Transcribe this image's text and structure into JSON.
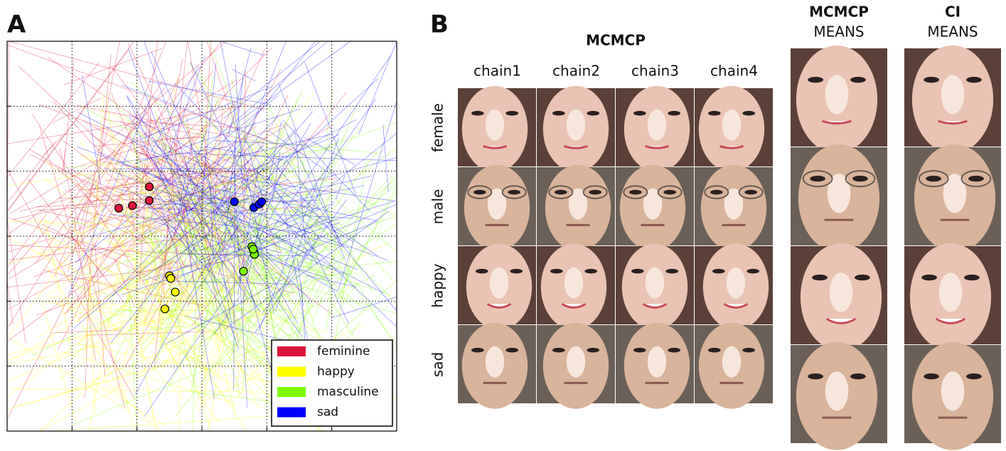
{
  "panel_labels": [
    "A",
    "B"
  ],
  "chart_data": {
    "type": "scatter",
    "xlim": [
      0,
      6
    ],
    "ylim": [
      0,
      6
    ],
    "xticks": [
      1,
      2,
      3,
      4,
      5
    ],
    "yticks": [
      1,
      2,
      3,
      4,
      5
    ],
    "grid": true,
    "legend_position": "lower right",
    "series": [
      {
        "name": "feminine",
        "color": "#dc143c",
        "x": [
          1.72,
          1.93,
          2.19,
          2.19
        ],
        "values": [
          3.43,
          3.47,
          3.76,
          3.55
        ]
      },
      {
        "name": "happy",
        "color": "#ffff00",
        "x": [
          2.5,
          2.52,
          2.59,
          2.43
        ],
        "values": [
          2.39,
          2.35,
          2.14,
          1.88
        ]
      },
      {
        "name": "masculine",
        "color": "#7fff00",
        "x": [
          3.77,
          3.81,
          3.64,
          3.79
        ],
        "values": [
          2.84,
          2.72,
          2.46,
          2.8
        ]
      },
      {
        "name": "sad",
        "color": "#0000ff",
        "x": [
          3.5,
          3.8,
          3.88,
          3.92
        ],
        "values": [
          3.53,
          3.44,
          3.49,
          3.53
        ]
      }
    ]
  },
  "face_grid": {
    "title": "MCMCP",
    "columns": [
      "chain1",
      "chain2",
      "chain3",
      "chain4"
    ],
    "rows": [
      "female",
      "male",
      "happy",
      "sad"
    ],
    "means": [
      {
        "title": "MCMCP",
        "subtitle": "MEANS"
      },
      {
        "title": "CI",
        "subtitle": "MEANS"
      }
    ]
  }
}
